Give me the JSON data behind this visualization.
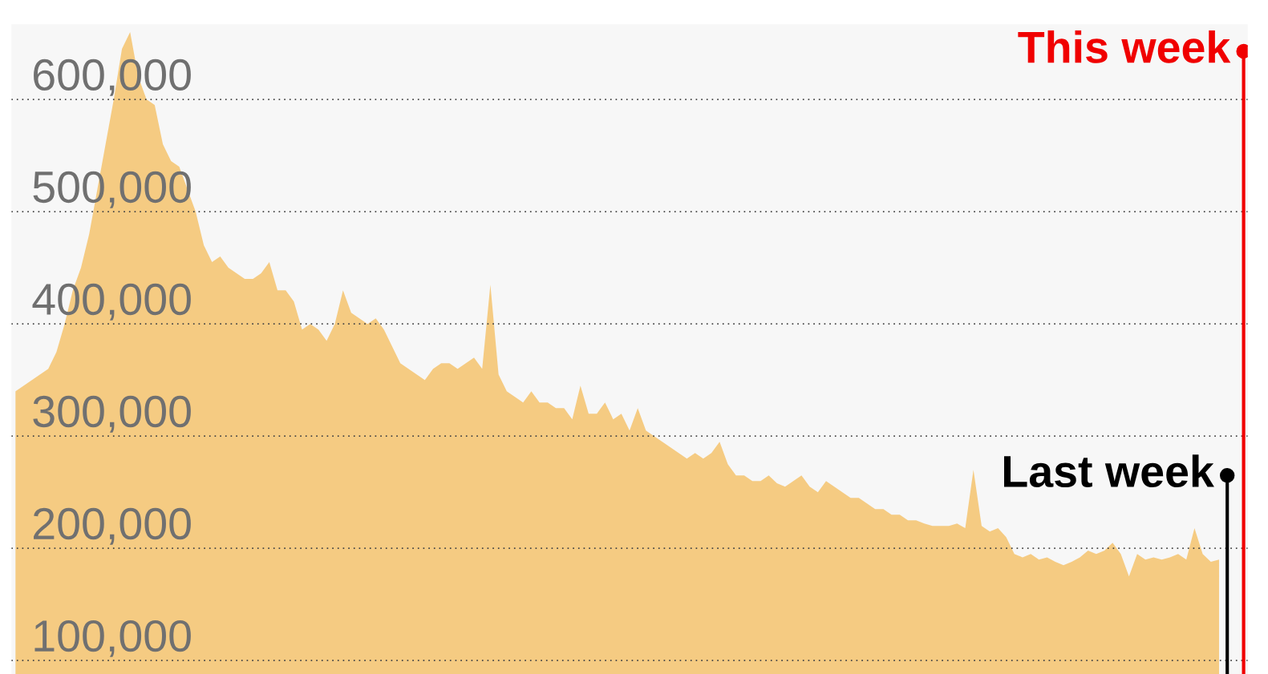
{
  "chart_data": {
    "type": "area",
    "categories": [
      null,
      null,
      null,
      null,
      null,
      null,
      null,
      null,
      null,
      null,
      null,
      null,
      null,
      null,
      null,
      null,
      null,
      null,
      null,
      null,
      null,
      null,
      null,
      null,
      null,
      null,
      null,
      null,
      null,
      null,
      null,
      null,
      null,
      null,
      null,
      null,
      null,
      null,
      null,
      null,
      null,
      null,
      null,
      null,
      null,
      null,
      null,
      null,
      null,
      null,
      null,
      null,
      null,
      null,
      null,
      null,
      null,
      null,
      null,
      null,
      null,
      null,
      null,
      null,
      null,
      null,
      null,
      null,
      null,
      null,
      null,
      null,
      null,
      null,
      null,
      null,
      null,
      null,
      null,
      null,
      null,
      null,
      null,
      null,
      null,
      null,
      null,
      null,
      null,
      null,
      null,
      null,
      null,
      null,
      null,
      null,
      null,
      null,
      null,
      null,
      null,
      null,
      null,
      null,
      null,
      null,
      null,
      null,
      null,
      null,
      null,
      null,
      null,
      null,
      null,
      null,
      null,
      null,
      null,
      null,
      null,
      null,
      null,
      null,
      null,
      null,
      null,
      null,
      null,
      null,
      null,
      null,
      null,
      null,
      null,
      null,
      null,
      null,
      null,
      null,
      null,
      null,
      null,
      null,
      null,
      null,
      null,
      null,
      null,
      null,
      null
    ],
    "series": [
      {
        "color": "#f5cb82",
        "values": [
          340000,
          345000,
          350000,
          355000,
          360000,
          375000,
          400000,
          430000,
          450000,
          480000,
          520000,
          560000,
          600000,
          645000,
          660000,
          620000,
          600000,
          595000,
          560000,
          545000,
          540000,
          520000,
          500000,
          470000,
          455000,
          460000,
          450000,
          445000,
          440000,
          440000,
          445000,
          455000,
          430000,
          430000,
          420000,
          395000,
          400000,
          395000,
          385000,
          400000,
          430000,
          410000,
          405000,
          400000,
          405000,
          395000,
          380000,
          365000,
          360000,
          355000,
          350000,
          360000,
          365000,
          365000,
          360000,
          365000,
          370000,
          360000,
          435000,
          355000,
          340000,
          335000,
          330000,
          340000,
          330000,
          330000,
          325000,
          325000,
          315000,
          345000,
          320000,
          320000,
          330000,
          315000,
          320000,
          305000,
          325000,
          305000,
          300000,
          295000,
          290000,
          285000,
          280000,
          285000,
          280000,
          285000,
          295000,
          275000,
          265000,
          265000,
          260000,
          260000,
          265000,
          258000,
          255000,
          260000,
          265000,
          255000,
          250000,
          260000,
          255000,
          250000,
          245000,
          245000,
          240000,
          235000,
          235000,
          230000,
          230000,
          225000,
          225000,
          222000,
          220000,
          220000,
          220000,
          222000,
          218000,
          270000,
          220000,
          215000,
          218000,
          210000,
          195000,
          192000,
          195000,
          190000,
          192000,
          188000,
          185000,
          188000,
          192000,
          198000,
          195000,
          198000,
          205000,
          195000,
          175000,
          195000,
          190000,
          192000,
          190000,
          192000,
          195000,
          190000,
          218000,
          195000,
          188000,
          190000,
          null,
          null,
          null
        ]
      },
      {
        "type": "lollipop",
        "marker": "circle",
        "name": "Last week",
        "color": "#000000",
        "values": [
          null,
          null,
          null,
          null,
          null,
          null,
          null,
          null,
          null,
          null,
          null,
          null,
          null,
          null,
          null,
          null,
          null,
          null,
          null,
          null,
          null,
          null,
          null,
          null,
          null,
          null,
          null,
          null,
          null,
          null,
          null,
          null,
          null,
          null,
          null,
          null,
          null,
          null,
          null,
          null,
          null,
          null,
          null,
          null,
          null,
          null,
          null,
          null,
          null,
          null,
          null,
          null,
          null,
          null,
          null,
          null,
          null,
          null,
          null,
          null,
          null,
          null,
          null,
          null,
          null,
          null,
          null,
          null,
          null,
          null,
          null,
          null,
          null,
          null,
          null,
          null,
          null,
          null,
          null,
          null,
          null,
          null,
          null,
          null,
          null,
          null,
          null,
          null,
          null,
          null,
          null,
          null,
          null,
          null,
          null,
          null,
          null,
          null,
          null,
          null,
          null,
          null,
          null,
          null,
          null,
          null,
          null,
          null,
          null,
          null,
          null,
          null,
          null,
          null,
          null,
          null,
          null,
          null,
          null,
          null,
          null,
          null,
          null,
          null,
          null,
          null,
          null,
          null,
          null,
          null,
          null,
          null,
          null,
          null,
          null,
          null,
          null,
          null,
          null,
          null,
          null,
          null,
          null,
          null,
          null,
          null,
          null,
          null,
          265000,
          null,
          null
        ]
      },
      {
        "type": "lollipop",
        "marker": "circle",
        "name": "This week",
        "color": "#f00000",
        "values": [
          null,
          null,
          null,
          null,
          null,
          null,
          null,
          null,
          null,
          null,
          null,
          null,
          null,
          null,
          null,
          null,
          null,
          null,
          null,
          null,
          null,
          null,
          null,
          null,
          null,
          null,
          null,
          null,
          null,
          null,
          null,
          null,
          null,
          null,
          null,
          null,
          null,
          null,
          null,
          null,
          null,
          null,
          null,
          null,
          null,
          null,
          null,
          null,
          null,
          null,
          null,
          null,
          null,
          null,
          null,
          null,
          null,
          null,
          null,
          null,
          null,
          null,
          null,
          null,
          null,
          null,
          null,
          null,
          null,
          null,
          null,
          null,
          null,
          null,
          null,
          null,
          null,
          null,
          null,
          null,
          null,
          null,
          null,
          null,
          null,
          null,
          null,
          null,
          null,
          null,
          null,
          null,
          null,
          null,
          null,
          null,
          null,
          null,
          null,
          null,
          null,
          null,
          null,
          null,
          null,
          null,
          null,
          null,
          null,
          null,
          null,
          null,
          null,
          null,
          null,
          null,
          null,
          null,
          null,
          null,
          null,
          null,
          null,
          null,
          null,
          null,
          null,
          null,
          null,
          null,
          null,
          null,
          null,
          null,
          null,
          null,
          null,
          null,
          null,
          null,
          null,
          null,
          null,
          null,
          null,
          null,
          null,
          null,
          null,
          null,
          643000
        ]
      }
    ],
    "ylim": [
      88000,
      667000
    ],
    "yticks": [
      {
        "value": 100000,
        "label": "100,000"
      },
      {
        "value": 200000,
        "label": "200,000"
      },
      {
        "value": 300000,
        "label": "300,000"
      },
      {
        "value": 400000,
        "label": "400,000"
      },
      {
        "value": 500000,
        "label": "500,000"
      },
      {
        "value": 600000,
        "label": "600,000"
      }
    ],
    "grid": "y",
    "tick_labels": "y"
  }
}
